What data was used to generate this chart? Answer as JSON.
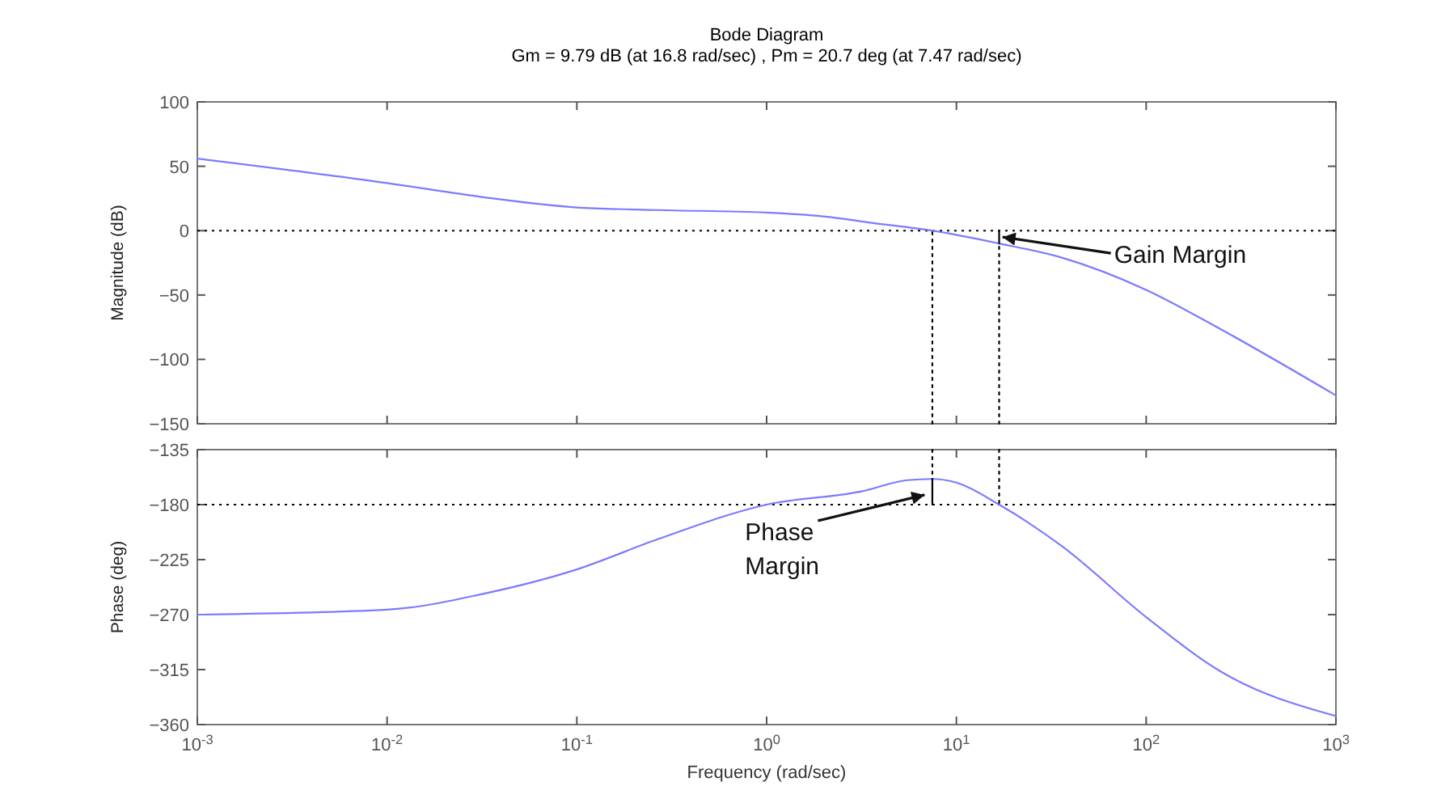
{
  "chart_data": [
    {
      "type": "line",
      "title": "Bode Diagram",
      "subtitle": "Gm = 9.79 dB (at 16.8 rad/sec) ,  Pm = 20.7 deg (at 7.47 rad/sec)",
      "ylabel": "Magnitude (dB)",
      "log": "x",
      "xlim": [
        0.001,
        1000
      ],
      "xticks": [
        {
          "value": 0.001,
          "label": null
        },
        {
          "value": 0.01,
          "label": null
        },
        {
          "value": 0.1,
          "label": null
        },
        {
          "value": 1,
          "label": null
        },
        {
          "value": 10,
          "label": null
        },
        {
          "value": 100,
          "label": null
        },
        {
          "value": 1000,
          "label": null
        }
      ],
      "ylim": [
        -150,
        100
      ],
      "yticks": [
        -150,
        -100,
        -50,
        0,
        50,
        100
      ],
      "tick_labels": "y",
      "grid": false,
      "series": [
        {
          "color": "#7b7bff",
          "x": [
            0.001,
            0.01,
            0.032,
            0.1,
            0.27,
            1,
            2,
            3.6,
            7.47,
            16.8,
            36,
            100,
            250,
            1000
          ],
          "values": [
            56,
            37,
            26,
            18,
            16,
            14,
            11,
            6,
            0,
            -10,
            -21,
            -46,
            -77,
            -128
          ]
        },
        {
          "color": "#000000",
          "line_style": "dotted",
          "x": [
            7.47,
            7.47
          ],
          "values": [
            -150,
            0
          ]
        },
        {
          "color": "#000000",
          "line_style": "dotted",
          "x": [
            16.8,
            16.8
          ],
          "values": [
            -150,
            -10
          ]
        },
        {
          "color": "#000000",
          "x": [
            16.8,
            16.8
          ],
          "values": [
            0,
            -10
          ]
        }
      ],
      "ref_lines": [
        {
          "axis": "y",
          "value": 0,
          "color": "#000000",
          "line_style": "dotted"
        }
      ],
      "annotations": [
        {
          "text": "Gain Margin",
          "x": 17.5,
          "y": -5
        }
      ]
    },
    {
      "type": "line",
      "xlabel": "Frequency  (rad/sec)",
      "ylabel": "Phase (deg)",
      "log": "x",
      "xlim": [
        0.001,
        1000
      ],
      "xticks": [
        {
          "value": 0.001,
          "label": "10$^{-3}$"
        },
        {
          "value": 0.01,
          "label": "10$^{-2}$"
        },
        {
          "value": 0.1,
          "label": "10$^{-1}$"
        },
        {
          "value": 1,
          "label": "10$^{0}$"
        },
        {
          "value": 10,
          "label": "10$^{1}$"
        },
        {
          "value": 100,
          "label": "10$^{2}$"
        },
        {
          "value": 1000,
          "label": "10$^{3}$"
        }
      ],
      "ylim": [
        -360,
        -135
      ],
      "yticks": [
        -360,
        -315,
        -270,
        -225,
        -180,
        -135
      ],
      "grid": false,
      "series": [
        {
          "color": "#7b7bff",
          "x": [
            0.001,
            0.01,
            0.032,
            0.1,
            0.27,
            1,
            3.2,
            5.5,
            7.47,
            10,
            16.8,
            36,
            100,
            250,
            1000
          ],
          "values": [
            -270,
            -266,
            -253,
            -233,
            -208,
            -180,
            -169,
            -160,
            -159,
            -162,
            -180,
            -214,
            -272,
            -317,
            -353
          ]
        },
        {
          "color": "#000000",
          "line_style": "dotted",
          "x": [
            7.47,
            7.47
          ],
          "values": [
            -135,
            -159
          ]
        },
        {
          "color": "#000000",
          "line_style": "dotted",
          "x": [
            16.8,
            16.8
          ],
          "values": [
            -135,
            -180
          ]
        },
        {
          "color": "#000000",
          "x": [
            7.47,
            7.47
          ],
          "values": [
            -180,
            -159
          ]
        }
      ],
      "ref_lines": [
        {
          "axis": "y",
          "value": -180,
          "color": "#000000",
          "line_style": "dotted"
        }
      ],
      "annotations": [
        {
          "text": "Phase Margin",
          "x": 6.8,
          "y": -172
        }
      ]
    }
  ]
}
